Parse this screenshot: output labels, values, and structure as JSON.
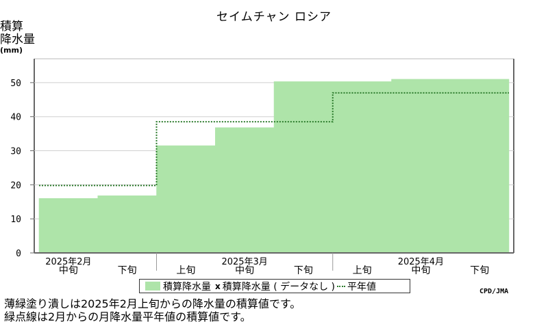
{
  "title": "セイムチャン ロシア",
  "ylabel": {
    "line1": "積算",
    "line2": "降水量",
    "unit": "(mm)"
  },
  "legend": {
    "fill_label": "積算降水量",
    "nodata_mark": "x",
    "nodata_label": "積算降水量 ( データなし )",
    "normal_label": "平年値"
  },
  "credit": "CPD/JMA",
  "notes": {
    "line1": "薄緑塗り潰しは2025年2月上旬からの降水量の積算値です。",
    "line2": "緑点線は2月からの月降水量平年値の積算値です。"
  },
  "chart_data": {
    "type": "area",
    "title": "セイムチャン ロシア",
    "ylabel": "積算降水量 (mm)",
    "ylim": [
      0,
      57
    ],
    "yticks": [
      0,
      10,
      20,
      30,
      40,
      50
    ],
    "grid": true,
    "x_periods": [
      {
        "month": "2025年2月",
        "dekad": "中旬"
      },
      {
        "month": "2025年2月",
        "dekad": "下旬"
      },
      {
        "month": "2025年3月",
        "dekad": "上旬"
      },
      {
        "month": "2025年3月",
        "dekad": "中旬"
      },
      {
        "month": "2025年3月",
        "dekad": "下旬"
      },
      {
        "month": "2025年4月",
        "dekad": "上旬"
      },
      {
        "month": "2025年4月",
        "dekad": "中旬"
      },
      {
        "month": "2025年4月",
        "dekad": "下旬"
      }
    ],
    "month_labels": [
      "2025年2月",
      "2025年3月",
      "2025年4月"
    ],
    "dekad_labels": [
      "中旬",
      "下旬",
      "上旬",
      "中旬",
      "下旬",
      "上旬",
      "中旬",
      "下旬"
    ],
    "series": [
      {
        "name": "積算降水量",
        "style": "filled-step",
        "color": "#aee4a9",
        "steps": [
          {
            "start": 0.0,
            "end": 1.0,
            "value": 16
          },
          {
            "start": 1.0,
            "end": 2.0,
            "value": 16.8
          },
          {
            "start": 2.0,
            "end": 3.0,
            "value": 31.5
          },
          {
            "start": 3.0,
            "end": 4.0,
            "value": 36.8
          },
          {
            "start": 4.0,
            "end": 6.0,
            "value": 50.3
          },
          {
            "start": 6.0,
            "end": 8.0,
            "value": 51
          }
        ]
      },
      {
        "name": "平年値",
        "style": "dotted-step",
        "color": "#2a7a2a",
        "steps": [
          {
            "start": 0.0,
            "end": 2.0,
            "value": 19.8
          },
          {
            "start": 2.0,
            "end": 5.0,
            "value": 38.5
          },
          {
            "start": 5.0,
            "end": 8.0,
            "value": 47
          }
        ]
      }
    ]
  }
}
